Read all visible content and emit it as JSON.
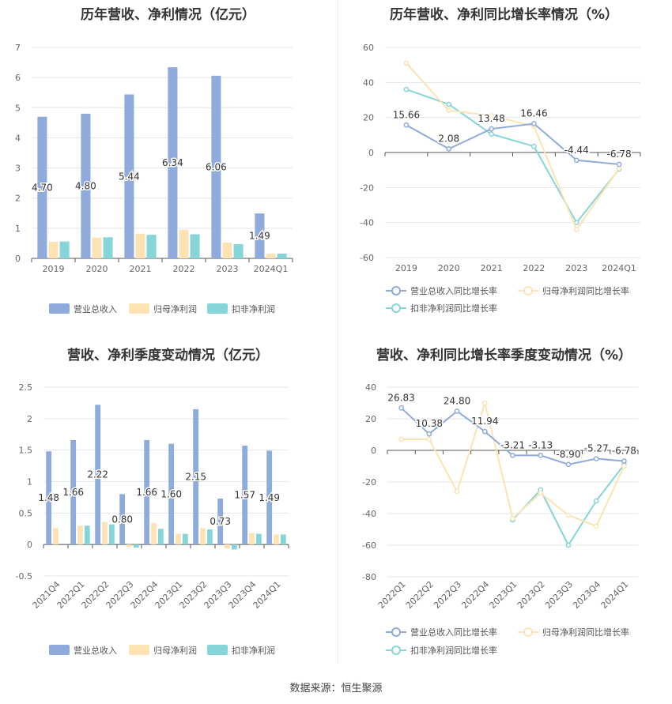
{
  "source": "数据来源：恒生聚源",
  "colors": {
    "revenue": "#8eabdb",
    "net_profit": "#fde3b4",
    "deducted": "#86d5d8"
  },
  "chart_data": [
    {
      "id": "annual-bar",
      "type": "bar",
      "title": "历年营收、净利情况（亿元）",
      "categories": [
        "2019",
        "2020",
        "2021",
        "2022",
        "2023",
        "2024Q1"
      ],
      "series": [
        {
          "name": "营业总收入",
          "color": "#8eabdb",
          "values": [
            4.7,
            4.8,
            5.44,
            6.34,
            6.06,
            1.49
          ],
          "labels": [
            "4.70",
            "4.80",
            "5.44",
            "6.34",
            "6.06",
            "1.49"
          ]
        },
        {
          "name": "归母净利润",
          "color": "#fde3b4",
          "values": [
            0.55,
            0.69,
            0.82,
            0.95,
            0.52,
            0.16
          ]
        },
        {
          "name": "扣非净利润",
          "color": "#86d5d8",
          "values": [
            0.56,
            0.7,
            0.78,
            0.8,
            0.47,
            0.16
          ]
        }
      ],
      "ylim": [
        0,
        7
      ],
      "yticks": [
        0,
        1,
        2,
        3,
        4,
        5,
        6,
        7
      ],
      "grid": true,
      "legend": "bottom"
    },
    {
      "id": "annual-line",
      "type": "line",
      "title": "历年营收、净利同比增长率情况（%）",
      "categories": [
        "2019",
        "2020",
        "2021",
        "2022",
        "2023",
        "2024Q1"
      ],
      "series": [
        {
          "name": "营业总收入同比增长率",
          "color": "#8eabdb",
          "values": [
            15.66,
            2.08,
            13.48,
            16.46,
            -4.44,
            -6.78
          ],
          "labels": [
            "15.66",
            "2.08",
            "13.48",
            "16.46",
            "-4.44",
            "-6.78"
          ]
        },
        {
          "name": "归母净利润同比增长率",
          "color": "#fde3b4",
          "values": [
            51,
            24,
            21,
            15,
            -44,
            -9
          ]
        },
        {
          "name": "扣非净利润同比增长率",
          "color": "#86d5d8",
          "values": [
            36,
            27.5,
            10.5,
            3.5,
            -40,
            -9.5
          ]
        }
      ],
      "ylim": [
        -60,
        60
      ],
      "yticks": [
        -60,
        -40,
        -20,
        0,
        20,
        40,
        60
      ],
      "grid": true,
      "legend": "bottom"
    },
    {
      "id": "quarter-bar",
      "type": "bar",
      "title": "营收、净利季度变动情况（亿元）",
      "categories": [
        "2021Q4",
        "2022Q1",
        "2022Q2",
        "2022Q3",
        "2022Q4",
        "2023Q1",
        "2023Q2",
        "2023Q3",
        "2023Q4",
        "2024Q1"
      ],
      "series": [
        {
          "name": "营业总收入",
          "color": "#8eabdb",
          "values": [
            1.48,
            1.66,
            2.22,
            0.8,
            1.66,
            1.6,
            2.15,
            0.73,
            1.57,
            1.49
          ],
          "labels": [
            "1.48",
            "1.66",
            "2.22",
            "0.80",
            "1.66",
            "1.60",
            "2.15",
            "0.73",
            "1.57",
            "1.49"
          ]
        },
        {
          "name": "归母净利润",
          "color": "#fde3b4",
          "values": [
            0.26,
            0.3,
            0.36,
            -0.04,
            0.34,
            0.17,
            0.26,
            -0.06,
            0.18,
            0.16
          ]
        },
        {
          "name": "扣非净利润",
          "color": "#86d5d8",
          "values": [
            0.0,
            0.3,
            0.32,
            -0.05,
            0.25,
            0.17,
            0.24,
            -0.08,
            0.17,
            0.16
          ]
        }
      ],
      "ylim": [
        -0.5,
        2.5
      ],
      "yticks": [
        -0.5,
        0,
        0.5,
        1,
        1.5,
        2,
        2.5
      ],
      "grid": true,
      "legend": "bottom"
    },
    {
      "id": "quarter-line",
      "type": "line",
      "title": "营收、净利同比增长率季度变动情况（%）",
      "categories": [
        "2022Q1",
        "2022Q2",
        "2022Q3",
        "2022Q4",
        "2023Q1",
        "2023Q2",
        "2023Q3",
        "2023Q4",
        "2024Q1"
      ],
      "series": [
        {
          "name": "营业总收入同比增长率",
          "color": "#8eabdb",
          "values": [
            26.83,
            10.38,
            24.8,
            11.94,
            -3.21,
            -3.13,
            -8.9,
            -5.27,
            -6.78
          ],
          "labels": [
            "26.83",
            "10.38",
            "24.80",
            "11.94",
            "-3.21",
            "-3.13",
            "-8.90",
            "-5.27",
            "-6.78"
          ]
        },
        {
          "name": "归母净利润同比增长率",
          "color": "#fde3b4",
          "values": [
            7,
            7,
            -26,
            30,
            -43,
            -27,
            -41,
            -48,
            -10
          ]
        },
        {
          "name": "扣非净利润同比增长率",
          "color": "#86d5d8",
          "values": [
            null,
            null,
            null,
            null,
            -44,
            -25,
            -60,
            -32,
            -9
          ]
        }
      ],
      "ylim": [
        -80,
        40
      ],
      "yticks": [
        -80,
        -60,
        -40,
        -20,
        0,
        20,
        40
      ],
      "grid": true,
      "legend": "bottom"
    }
  ]
}
